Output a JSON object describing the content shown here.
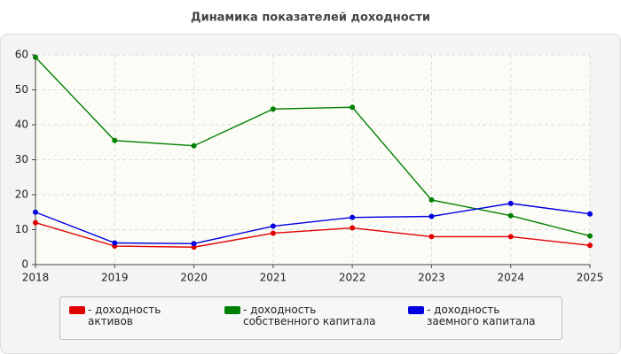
{
  "chart_data": {
    "type": "line",
    "title": "Динамика показателей доходности",
    "x": [
      2018,
      2019,
      2020,
      2021,
      2022,
      2023,
      2024,
      2025
    ],
    "xlim": [
      2018,
      2025
    ],
    "xticks": [
      2018,
      2019,
      2020,
      2021,
      2022,
      2023,
      2024,
      2025
    ],
    "ylim": [
      0,
      60
    ],
    "yticks": [
      0,
      10,
      20,
      30,
      40,
      50,
      60
    ],
    "grid": true,
    "series": [
      {
        "name": "- доходность активов",
        "color": "#e00000",
        "values": [
          12,
          5.3,
          5,
          9,
          10.5,
          8,
          8,
          5.5
        ]
      },
      {
        "name": "- доходность собственного капитала",
        "color": "#008000",
        "values": [
          59.3,
          35.5,
          34,
          44.5,
          45,
          18.5,
          14,
          8.2
        ]
      },
      {
        "name": "- доходность заемного капитала",
        "color": "#0000e0",
        "values": [
          15,
          6.2,
          6,
          11,
          13.5,
          13.8,
          17.5,
          14.5
        ]
      }
    ]
  }
}
